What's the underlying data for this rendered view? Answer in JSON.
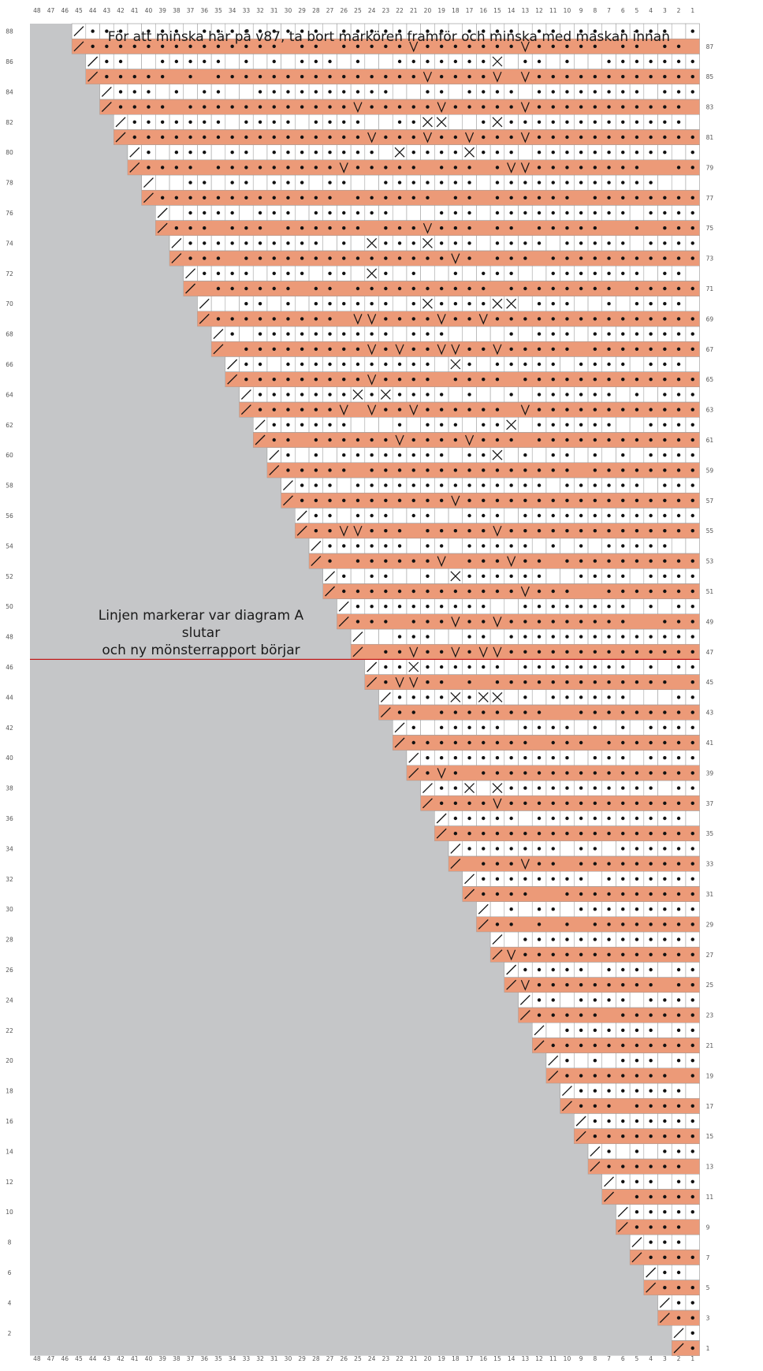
{
  "notes": {
    "top": "För att minska här på v87, ta bort markören framför och minska med maskan innan",
    "divider_line1": "Linjen markerar var diagram A slutar",
    "divider_line2": "och ny mönsterrapport börjar"
  },
  "colors": {
    "background_gray": "#c5c6c8",
    "salmon_row": "#ec9a78",
    "white_row": "#ffffff",
    "divider_line": "#c21a1a",
    "symbol": "#111111"
  },
  "legend_symbols": {
    "dot": "purl",
    "slash": "decrease",
    "v": "increase",
    "cross": "cable"
  },
  "chart_data": {
    "type": "table",
    "columns": [
      "48",
      "47",
      "46",
      "45",
      "44",
      "43",
      "42",
      "41",
      "40",
      "39",
      "38",
      "37",
      "36",
      "35",
      "34",
      "33",
      "32",
      "31",
      "30",
      "29",
      "28",
      "27",
      "26",
      "25",
      "24",
      "23",
      "22",
      "21",
      "20",
      "19",
      "18",
      "17",
      "16",
      "15",
      "14",
      "13",
      "12",
      "11",
      "10",
      "9",
      "8",
      "7",
      "6",
      "5",
      "4",
      "3",
      "2",
      "1"
    ],
    "left_row_labels": [
      "88",
      "86",
      "84",
      "82",
      "80",
      "78",
      "76",
      "74",
      "72",
      "70",
      "68",
      "66",
      "64",
      "62",
      "60",
      "58",
      "56",
      "54",
      "52",
      "50",
      "48",
      "46",
      "44",
      "42",
      "40",
      "38",
      "36",
      "34",
      "32",
      "30",
      "28",
      "26",
      "24",
      "22",
      "20",
      "18",
      "16",
      "14",
      "12",
      "10",
      "8",
      "6",
      "4",
      "2"
    ],
    "right_row_labels": [
      "87",
      "85",
      "83",
      "81",
      "79",
      "77",
      "75",
      "73",
      "71",
      "69",
      "67",
      "65",
      "63",
      "61",
      "59",
      "57",
      "55",
      "53",
      "51",
      "49",
      "47",
      "45",
      "43",
      "41",
      "39",
      "37",
      "35",
      "33",
      "31",
      "29",
      "27",
      "25",
      "23",
      "21",
      "19",
      "17",
      "15",
      "13",
      "11",
      "9",
      "7",
      "5",
      "3",
      "1"
    ],
    "total_rows": 88,
    "divider_after_row": 46,
    "shape": "staircase triangle: one stitch less every second row from the left"
  }
}
